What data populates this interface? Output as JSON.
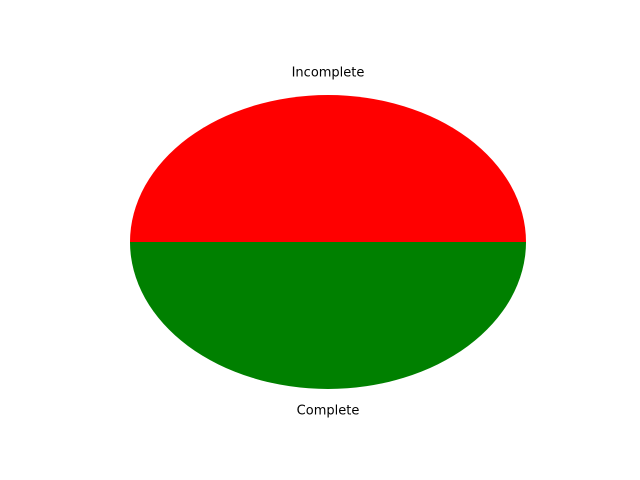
{
  "chart_data": {
    "type": "pie",
    "title": "",
    "labels": [
      "Incomplete",
      "Complete"
    ],
    "values": [
      50,
      50
    ],
    "colors": [
      "#ff0000",
      "#008000"
    ],
    "start_angle_deg": 0,
    "legend": "none",
    "grid": false,
    "label_placement": "outside"
  }
}
